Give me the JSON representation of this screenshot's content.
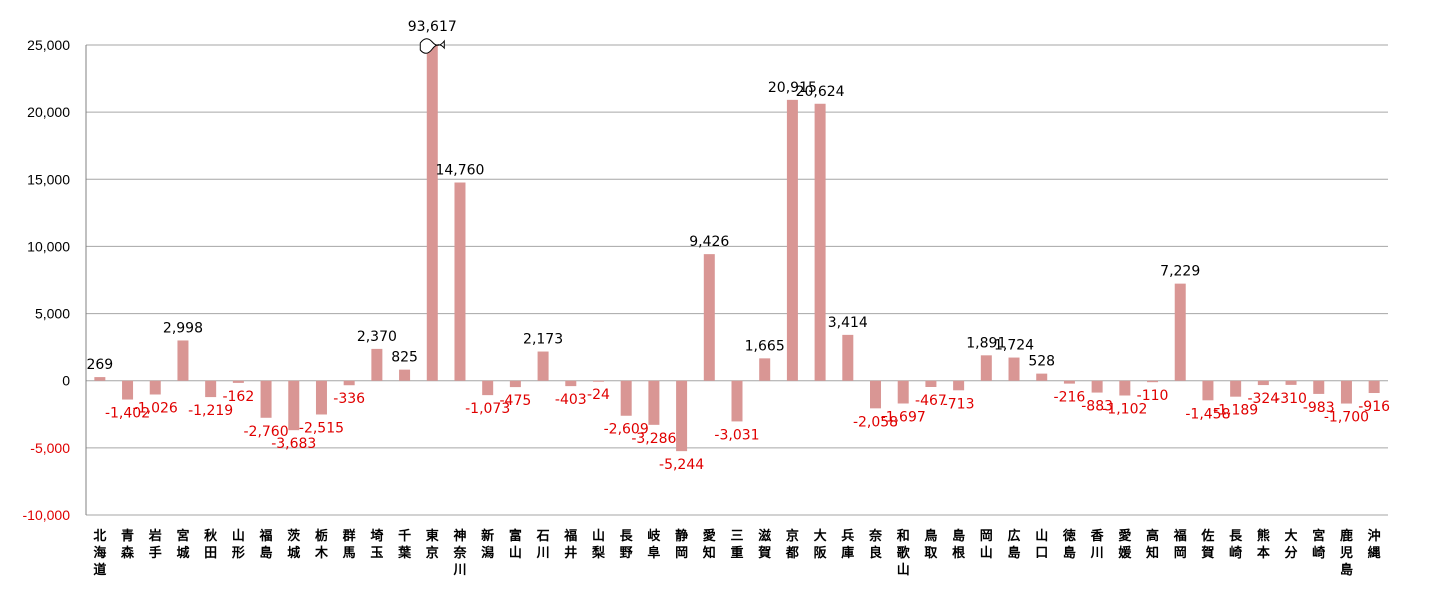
{
  "chart_data": {
    "type": "bar",
    "title": "",
    "xlabel": "",
    "ylabel": "",
    "ylim": [
      -10000,
      25000
    ],
    "yticks": [
      {
        "value": 25000,
        "label": "25,000"
      },
      {
        "value": 20000,
        "label": "20,000"
      },
      {
        "value": 15000,
        "label": "15,000"
      },
      {
        "value": 10000,
        "label": "10,000"
      },
      {
        "value": 5000,
        "label": "5,000"
      },
      {
        "value": 0,
        "label": "0"
      },
      {
        "value": -5000,
        "label": "-5,000"
      },
      {
        "value": -10000,
        "label": "-10,000"
      }
    ],
    "grid": true,
    "bar_color": "#d99694",
    "positive_label_color": "#000000",
    "negative_label_color": "#e00000",
    "negative_tick_color": "#e00000",
    "categories": [
      "北海道",
      "青森",
      "岩手",
      "宮城",
      "秋田",
      "山形",
      "福島",
      "茨城",
      "栃木",
      "群馬",
      "埼玉",
      "千葉",
      "東京",
      "神奈川",
      "新潟",
      "富山",
      "石川",
      "福井",
      "山梨",
      "長野",
      "岐阜",
      "静岡",
      "愛知",
      "三重",
      "滋賀",
      "京都",
      "大阪",
      "兵庫",
      "奈良",
      "和歌山",
      "鳥取",
      "島根",
      "岡山",
      "広島",
      "山口",
      "徳島",
      "香川",
      "愛媛",
      "高知",
      "福岡",
      "佐賀",
      "長崎",
      "熊本",
      "大分",
      "宮崎",
      "鹿児島",
      "沖縄"
    ],
    "values": [
      269,
      -1402,
      -1026,
      2998,
      -1219,
      -162,
      -2760,
      -3683,
      -2515,
      -336,
      2370,
      825,
      93617,
      14760,
      -1073,
      -475,
      2173,
      -403,
      -24,
      -2609,
      -3286,
      -5244,
      9426,
      -3031,
      1665,
      20915,
      20624,
      3414,
      -2058,
      -1697,
      -467,
      -713,
      1891,
      1724,
      528,
      -216,
      -883,
      -1102,
      -110,
      7229,
      -1458,
      -1189,
      -324,
      -310,
      -983,
      -1700,
      -916
    ],
    "data_labels": [
      "269",
      "-1,402",
      "-1,026",
      "2,998",
      "-1,219",
      "-162",
      "-2,760",
      "-3,683",
      "-2,515",
      "-336",
      "2,370",
      "825",
      "93,617",
      "14,760",
      "-1,073",
      "-475",
      "2,173",
      "-403",
      "-24",
      "-2,609",
      "-3,286",
      "-5,244",
      "9,426",
      "-3,031",
      "1,665",
      "20,915",
      "20,624",
      "3,414",
      "-2,058",
      "-1,697",
      "-467",
      "-713",
      "1,891",
      "1,724",
      "528",
      "-216",
      "-883",
      "-1,102",
      "-110",
      "7,229",
      "-1,458",
      "-1,189",
      "-324",
      "-310",
      "-983",
      "-1,700",
      "-916"
    ],
    "broken_axis_category": "東京"
  }
}
